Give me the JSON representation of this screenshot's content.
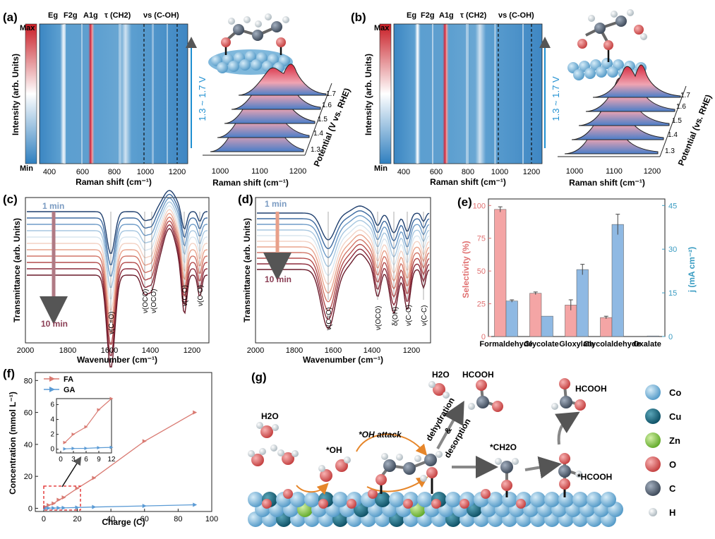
{
  "panels": {
    "a": {
      "letter": "(a)",
      "peak_labels": [
        "Eg",
        "F2g",
        "A1g",
        "τ (CH2)",
        "νs (C-OH)"
      ],
      "colorbar": {
        "max": "Max",
        "min": "Min"
      },
      "ylabel": "Intensity (arb. Units)",
      "xlabel": "Raman shift (cm⁻¹)",
      "xticks": [
        "400",
        "600",
        "800",
        "1000",
        "1200"
      ],
      "potential_arrow": "1.3 ~ 1.7 V",
      "waterfall": {
        "xlabel": "Raman shift (cm⁻¹)",
        "xticks": [
          "1000",
          "1100",
          "1200"
        ],
        "ylabel": "Potential (V vs. RHE)",
        "levels": [
          "1.3",
          "1.4",
          "1.5",
          "1.6",
          "1.7"
        ]
      }
    },
    "b": {
      "letter": "(b)",
      "peak_labels": [
        "Eg",
        "F2g",
        "A1g",
        "τ (CH2)",
        "νs (C-OH)"
      ],
      "colorbar": {
        "max": "Max",
        "min": "Min"
      },
      "ylabel": "Intensity (arb. Units)",
      "xlabel": "Raman shift (cm⁻¹)",
      "xticks": [
        "400",
        "600",
        "800",
        "1000",
        "1200"
      ],
      "potential_arrow": "1.3 ~ 1.7 V",
      "waterfall": {
        "xlabel": "Raman shift (cm⁻¹)",
        "xticks": [
          "1000",
          "1100",
          "1200"
        ],
        "ylabel": "Potential (vs. RHE)",
        "levels": [
          "1.3",
          "1.4",
          "1.5",
          "1.6",
          "1.7"
        ]
      }
    },
    "c": {
      "letter": "(c)",
      "ylabel": "Transmittance (arb. Units)",
      "xlabel": "Wavenumber (cm⁻¹)",
      "xticks": [
        "2000",
        "1800",
        "1600",
        "1400",
        "1200"
      ],
      "time_start": "1 min",
      "time_end": "10 min",
      "band_labels": [
        "ν(C=O)",
        "ν(OCO)",
        "ν(OCO)",
        "ν(C-O)",
        "ν(C-O)"
      ]
    },
    "d": {
      "letter": "(d)",
      "ylabel": "Transmittance (arb. Units)",
      "xlabel": "Wavenumber (cm⁻¹)",
      "xticks": [
        "2000",
        "1800",
        "1600",
        "1400",
        "1200"
      ],
      "time_start": "1 min",
      "time_end": "10 min",
      "band_labels": [
        "ν(C=O)",
        "ν(OCO)",
        "δ(OH)",
        "ν(C-O)",
        "ν(C-C)"
      ]
    },
    "e": {
      "letter": "(e)",
      "ylabel_left": "Selectivity (%)",
      "ylabel_right": "j (mA cm⁻²)",
      "yticks_left": [
        "0",
        "25",
        "50",
        "75",
        "100"
      ],
      "yticks_right": [
        "0",
        "15",
        "30",
        "45"
      ]
    },
    "f": {
      "letter": "(f)",
      "ylabel": "Concentration (mmol L⁻¹)",
      "xlabel": "Charge (C)",
      "xticks": [
        "0",
        "20",
        "40",
        "60",
        "80",
        "100"
      ],
      "yticks": [
        "0",
        "20",
        "40",
        "60",
        "80"
      ],
      "inset_xticks": [
        "0",
        "3",
        "6",
        "9",
        "12"
      ],
      "inset_yticks": [
        "0",
        "2",
        "4",
        "6"
      ]
    },
    "g": {
      "letter": "(g)",
      "labels": {
        "h2o_left": "H2O",
        "oh_star": "*OH",
        "oh_attack": "*OH attack",
        "dehydration": "dehydration",
        "amp": "&",
        "desorption": "desorption",
        "h2o_top": "H2O",
        "hcooh_top": "HCOOH",
        "ch2o": "*CH2O",
        "hcooh_right": "HCOOH",
        "hcooh_star": "*HCOOH"
      },
      "legend": [
        {
          "name": "Co",
          "color": "#6fb3d9"
        },
        {
          "name": "Cu",
          "color": "#0f6a84"
        },
        {
          "name": "Zn",
          "color": "#8fcf4a"
        },
        {
          "name": "O",
          "color": "#e06262"
        },
        {
          "name": "C",
          "color": "#5a6a80"
        },
        {
          "name": "H",
          "color": "#cfd8dc"
        }
      ]
    }
  },
  "chart_data": [
    {
      "id": "e",
      "type": "bar",
      "categories": [
        "Formaldehyde",
        "Glycolate",
        "Gloxylate",
        "Glycolaldehyde",
        "Oxalate"
      ],
      "series": [
        {
          "name": "Selectivity (%)",
          "axis": "left",
          "color": "#f4a5a5",
          "values": [
            97,
            33,
            24,
            14.5,
            0
          ],
          "errors": [
            2,
            1,
            4,
            1,
            0
          ]
        },
        {
          "name": "j (mA cm⁻²)",
          "axis": "right",
          "color": "#8fb9e3",
          "values": [
            12.2,
            7,
            23,
            38.5,
            0.2
          ],
          "errors": [
            0.4,
            0,
            1.8,
            3.5,
            0
          ]
        }
      ],
      "ylim_left": [
        0,
        105
      ],
      "ylim_right": [
        0,
        47.25
      ]
    },
    {
      "id": "f",
      "type": "line",
      "series": [
        {
          "name": "FA",
          "color": "#d97a72",
          "x": [
            1,
            3,
            6,
            9,
            12,
            20,
            30,
            60,
            90
          ],
          "y": [
            0.9,
            2,
            3,
            5.3,
            6.8,
            12.5,
            19,
            42,
            60
          ]
        },
        {
          "name": "GA",
          "color": "#5b9bd5",
          "x": [
            1,
            3,
            6,
            9,
            12,
            20,
            30,
            60,
            90
          ],
          "y": [
            0.05,
            0.1,
            0.12,
            0.2,
            0.25,
            0.5,
            0.8,
            1.5,
            2.2
          ]
        }
      ],
      "xlim": [
        -5,
        100
      ],
      "ylim": [
        -2,
        85
      ],
      "inset": {
        "xlim": [
          -1,
          12
        ],
        "ylim": [
          -0.5,
          6.8
        ]
      }
    }
  ]
}
